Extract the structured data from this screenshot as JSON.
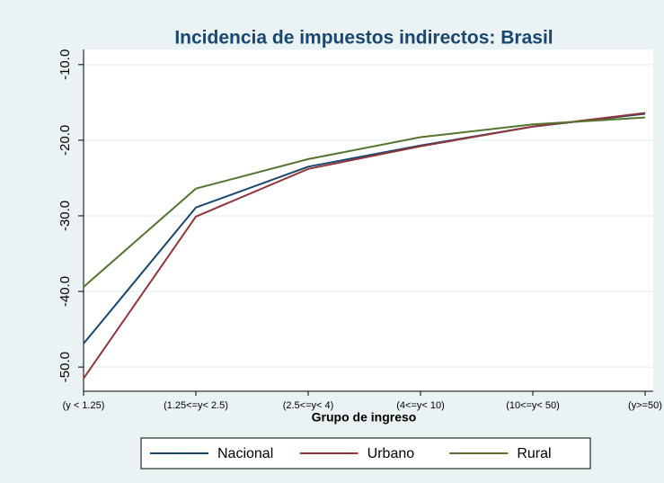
{
  "chart_data": {
    "type": "line",
    "title": "Incidencia de impuestos indirectos: Brasil",
    "xlabel": "Grupo de ingreso",
    "categories": [
      "(y < 1.25)",
      "(1.25<=y< 2.5)",
      "(2.5<=y< 4)",
      "(4<=y< 10)",
      "(10<=y< 50)",
      "(y>=50)"
    ],
    "series": [
      {
        "name": "Nacional",
        "color": "#1a476f",
        "values": [
          -46.9,
          -28.9,
          -23.5,
          -20.7,
          -18.2,
          -16.5
        ]
      },
      {
        "name": "Urbano",
        "color": "#90353b",
        "values": [
          -51.5,
          -30.1,
          -23.8,
          -20.8,
          -18.2,
          -16.4
        ]
      },
      {
        "name": "Rural",
        "color": "#55752f",
        "values": [
          -39.4,
          -26.4,
          -22.5,
          -19.6,
          -17.9,
          -17.0
        ]
      }
    ],
    "ylim": [
      -53.2,
      -8
    ],
    "yticks": [
      {
        "value": -10,
        "label": "-10.0"
      },
      {
        "value": -20,
        "label": "-20.0"
      },
      {
        "value": -30,
        "label": "-30.0"
      },
      {
        "value": -40,
        "label": "-40.0"
      },
      {
        "value": -50,
        "label": "-50.0"
      }
    ],
    "grid": true,
    "legend": "bottom"
  }
}
